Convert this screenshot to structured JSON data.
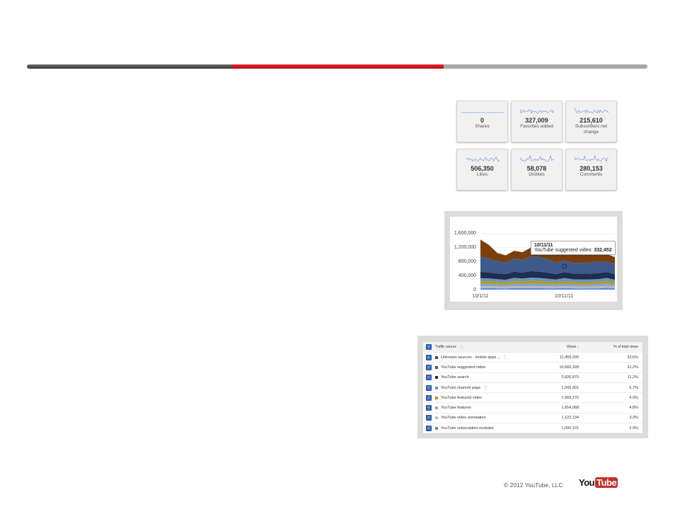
{
  "header_bar": {
    "progress_segments": [
      "dark",
      "red",
      "gray"
    ]
  },
  "metrics": [
    {
      "value": "0",
      "label": "Shares"
    },
    {
      "value": "327,009",
      "label": "Favorites added"
    },
    {
      "value": "215,610",
      "label": "Subscribers net change"
    },
    {
      "value": "506,350",
      "label": "Likes"
    },
    {
      "value": "58,078",
      "label": "Dislikes"
    },
    {
      "value": "280,153",
      "label": "Comments"
    }
  ],
  "chart_data": {
    "type": "area",
    "stacked": true,
    "x": [
      "10/1/11",
      "10/2/11",
      "10/3/11",
      "10/4/11",
      "10/5/11",
      "10/6/11",
      "10/7/11",
      "10/8/11",
      "10/9/11",
      "10/10/11",
      "10/11/11",
      "10/12/11",
      "10/13/11",
      "10/14/11",
      "10/15/11",
      "10/16/11",
      "10/17/11"
    ],
    "x_tick_labels": [
      "10/1/11",
      "10/11/11"
    ],
    "y_tick_labels": [
      "0",
      "400,000",
      "800,000",
      "1,200,000",
      "1,600,000"
    ],
    "ylim": [
      0,
      1600000
    ],
    "grid": true,
    "series": [
      {
        "name": "YouTube subscription modules",
        "color": "#5b87d9",
        "values": [
          40000,
          42000,
          38000,
          36000,
          44000,
          40000,
          42000,
          41000,
          39000,
          37000,
          45000,
          38000,
          36000,
          37000,
          38000,
          50000,
          40000
        ]
      },
      {
        "name": "YouTube video annotation",
        "color": "#b5b9c2",
        "values": [
          60000,
          58000,
          55000,
          52000,
          60000,
          58000,
          62000,
          60000,
          57000,
          54000,
          60000,
          55000,
          54000,
          55000,
          56000,
          60000,
          52000
        ]
      },
      {
        "name": "YouTube features",
        "color": "#8aa3c8",
        "values": [
          70000,
          68000,
          65000,
          60000,
          72000,
          68000,
          75000,
          72000,
          68000,
          62000,
          70000,
          64000,
          62000,
          63000,
          64000,
          70000,
          60000
        ]
      },
      {
        "name": "YouTube featured video",
        "color": "#b39b14",
        "values": [
          70000,
          66000,
          60000,
          58000,
          70000,
          66000,
          72000,
          70000,
          64000,
          58000,
          68000,
          60000,
          58000,
          58000,
          60000,
          68000,
          56000
        ]
      },
      {
        "name": "YouTube channel page",
        "color": "#6a99b5",
        "values": [
          90000,
          86000,
          80000,
          76000,
          90000,
          86000,
          92000,
          90000,
          84000,
          78000,
          88000,
          80000,
          78000,
          78000,
          80000,
          86000,
          76000
        ]
      },
      {
        "name": "YouTube search",
        "color": "#1f2d52",
        "values": [
          180000,
          170000,
          165000,
          160000,
          175000,
          170000,
          185000,
          180000,
          172000,
          160000,
          170000,
          165000,
          165000,
          168000,
          170000,
          172000,
          160000
        ]
      },
      {
        "name": "YouTube suggested video",
        "color": "#3d5a8a",
        "values": [
          430000,
          400000,
          350000,
          330000,
          380000,
          360000,
          420000,
          420000,
          380000,
          320000,
          332452,
          300000,
          310000,
          320000,
          330000,
          300000,
          280000
        ]
      },
      {
        "name": "Unknown sources - mobile apps and direct",
        "color": "#7a3f0c",
        "values": [
          490000,
          390000,
          237000,
          208000,
          219000,
          222000,
          252000,
          247000,
          236000,
          231000,
          186548,
          288000,
          297000,
          291000,
          252000,
          214000,
          206000
        ]
      }
    ],
    "tooltip": {
      "date": "10/11/11",
      "series": "YouTube suggested video:",
      "value": "332,452"
    }
  },
  "table": {
    "headers": {
      "source": "Traffic source",
      "views": "Views ↓",
      "percent": "% of total views"
    },
    "rows": [
      {
        "source": "Unknown sources - mobile apps ...",
        "views": "11,459,299",
        "percent": "33.5%",
        "color": "#7a3f0c"
      },
      {
        "source": "YouTube suggested video",
        "views": "10,665,328",
        "percent": "31.2%",
        "color": "#3d5a8a"
      },
      {
        "source": "YouTube search",
        "views": "3,826,870",
        "percent": "11.2%",
        "color": "#1f2d52"
      },
      {
        "source": "YouTube channel page",
        "views": "1,942,301",
        "percent": "5.7%",
        "color": "#6a99b5"
      },
      {
        "source": "YouTube featured video",
        "views": "1,668,276",
        "percent": "4.9%",
        "color": "#b39b14"
      },
      {
        "source": "YouTube features",
        "views": "1,654,068",
        "percent": "4.8%",
        "color": "#8aa3c8"
      },
      {
        "source": "YouTube video annotation",
        "views": "1,122,134",
        "percent": "3.3%",
        "color": "#b5b9c2"
      },
      {
        "source": "YouTube subscription modules",
        "views": "1,000,101",
        "percent": "2.9%",
        "color": "#5b87d9"
      }
    ]
  },
  "footer": {
    "copyright": "© 2012 YouTube, LLC",
    "logo_text": "YouTube",
    "logo_you": "You",
    "logo_tube": "Tube"
  }
}
